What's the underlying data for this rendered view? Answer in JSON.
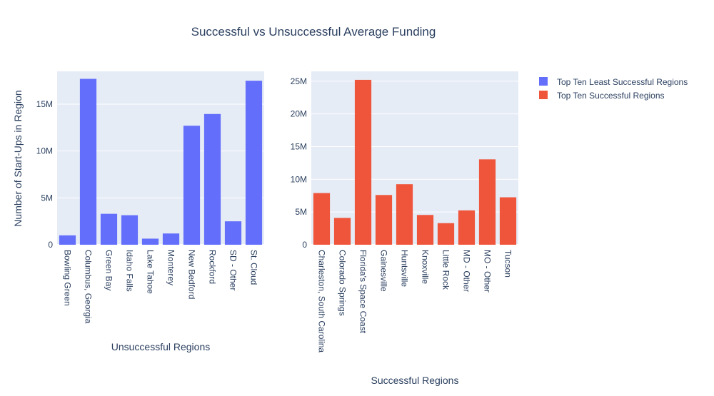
{
  "chart_data": {
    "title": "Successful vs Unsuccessful Average Funding",
    "legend": {
      "placement": "top-right",
      "items": [
        {
          "label": "Top Ten Least Successful Regions",
          "color": "#636efa"
        },
        {
          "label": "Top Ten Successful Regions",
          "color": "#ef553b"
        }
      ]
    },
    "subplots": [
      {
        "type": "bar",
        "series_name": "Top Ten Least Successful Regions",
        "color": "#636efa",
        "xlabel": "Unsuccessful Regions",
        "ylabel": "Number of Start-Ups in Region",
        "ylim": [
          0,
          18500000
        ],
        "yticks": [
          0,
          5000000,
          10000000,
          15000000
        ],
        "ytick_labels": [
          "0",
          "5M",
          "10M",
          "15M"
        ],
        "categories": [
          "Bowling Green",
          "Columbus, Georgia",
          "Green Bay",
          "Idaho Falls",
          "Lake Tahoe",
          "Monterey",
          "New Bedford",
          "Rockford",
          "SD - Other",
          "St. Cloud"
        ],
        "values": [
          1000000,
          17700000,
          3300000,
          3150000,
          650000,
          1200000,
          12700000,
          13950000,
          2500000,
          17500000
        ]
      },
      {
        "type": "bar",
        "series_name": "Top Ten Successful Regions",
        "color": "#ef553b",
        "xlabel": "Successful Regions",
        "ylabel": "",
        "ylim": [
          0,
          26500000
        ],
        "yticks": [
          0,
          5000000,
          10000000,
          15000000,
          20000000,
          25000000
        ],
        "ytick_labels": [
          "0",
          "5M",
          "10M",
          "15M",
          "20M",
          "25M"
        ],
        "categories": [
          "Charleston, South Carolina",
          "Colorado Springs",
          "Florida's Space Coast",
          "Gainesville",
          "Huntsville",
          "Knoxville",
          "Little Rock",
          "MD - Other",
          "MO - Other",
          "Tucson"
        ],
        "values": [
          7900000,
          4100000,
          25200000,
          7600000,
          9250000,
          4550000,
          3300000,
          5250000,
          13050000,
          7250000
        ]
      }
    ],
    "grid": true,
    "plot_background": "#e5ecf6"
  }
}
